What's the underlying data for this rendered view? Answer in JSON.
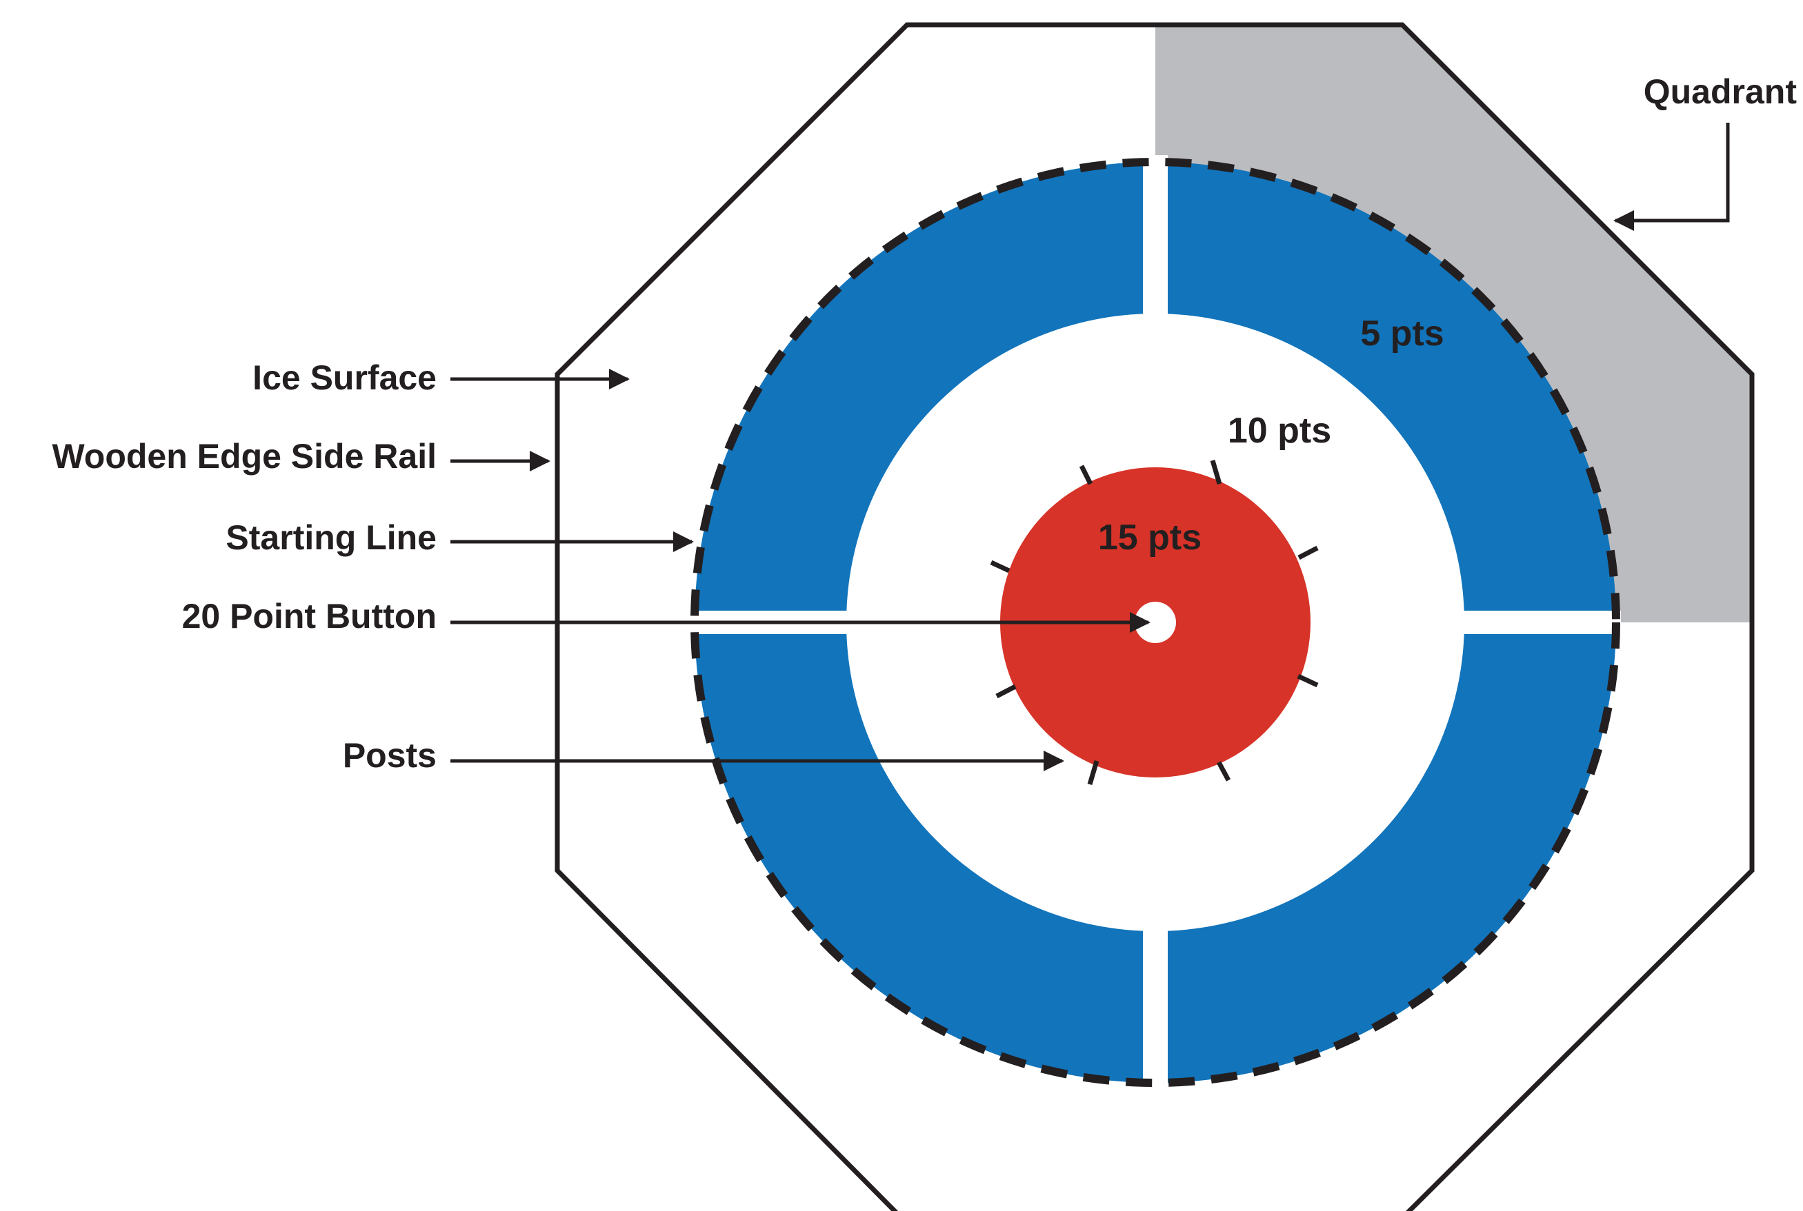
{
  "labels": {
    "ice_surface": "Ice Surface",
    "wooden_edge_side_rail": "Wooden Edge Side Rail",
    "starting_line": "Starting Line",
    "point_button_20": "20 Point Button",
    "posts": "Posts",
    "quadrant": "Quadrant"
  },
  "scores": {
    "outer_ring": "5 pts",
    "middle_ring": "10 pts",
    "center_circle": "15 pts"
  },
  "colors": {
    "outer_ring": "#1274bb",
    "center_circle": "#d73328",
    "quadrant_shade": "#bbbcbf",
    "outline": "#231f20",
    "surface": "#ffffff"
  }
}
